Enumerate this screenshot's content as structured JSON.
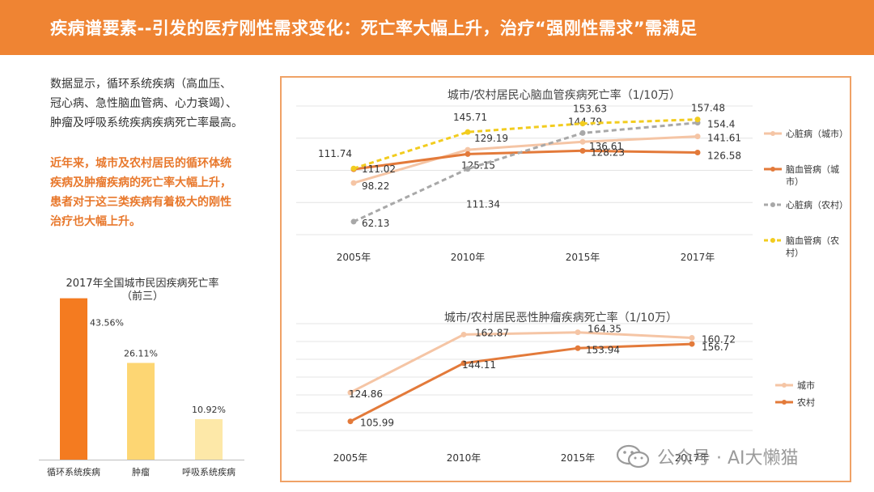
{
  "header": {
    "title": "疾病谱要素--引发的医疗刚性需求变化：死亡率大幅上升，治疗“强刚性需求”需满足"
  },
  "intro": {
    "lines": [
      "数据显示，循环系统疾病（高血压、",
      "冠心病、急性脑血管病、心力衰竭）、",
      "肿瘤及呼吸系统疾病疾病死亡率最高。"
    ]
  },
  "highlight": {
    "lines": [
      "近年来，城市及农村居民的循环体统",
      "疾病及肿瘤疾病的死亡率大幅上升，",
      "患者对于这三类疾病有着极大的刚性",
      "治疗也大幅上升。"
    ]
  },
  "watermark": {
    "text": "公众号 · AI大懒猫"
  },
  "chart_data": [
    {
      "id": "top3",
      "type": "bar",
      "title": "2017年全国城市民因疾病死亡率",
      "subtitle": "（前三）",
      "categories": [
        "循环系统疾病",
        "肿瘤",
        "呼吸系统疾病"
      ],
      "values": [
        43.56,
        26.11,
        10.92
      ],
      "value_labels": [
        "43.56%",
        "26.11%",
        "10.92%"
      ],
      "colors": [
        "#f47b20",
        "#fdd673",
        "#fde8a8"
      ],
      "ylim": [
        0,
        45
      ],
      "grid": false
    },
    {
      "id": "cardio",
      "type": "line",
      "title": "城市/农村居民心脑血管疾病死亡率（1/10万）",
      "categories": [
        "2005年",
        "2010年",
        "2015年",
        "2017年"
      ],
      "ylim": [
        50,
        170
      ],
      "grid": true,
      "legend_position": "right",
      "series": [
        {
          "name": "心脏病（城市）",
          "values": [
            98.22,
            129.19,
            136.61,
            141.61
          ],
          "color": "#f5c5a5",
          "dash": false,
          "labels": [
            "98.22",
            "129.19",
            "136.61",
            "141.61"
          ]
        },
        {
          "name": "脑血管病（城市）",
          "values": [
            111.02,
            125.15,
            128.23,
            126.58
          ],
          "color": "#e37a3a",
          "dash": false,
          "labels": [
            "111.02",
            "125.15",
            "128.23",
            "126.58"
          ]
        },
        {
          "name": "心脏病（农村）",
          "values": [
            62.13,
            111.34,
            144.79,
            154.4
          ],
          "color": "#a8a8a8",
          "dash": true,
          "labels": [
            "62.13",
            "111.34",
            "144.79",
            "154.4"
          ]
        },
        {
          "name": "脑血管病（农村）",
          "values": [
            111.74,
            145.71,
            153.63,
            157.48
          ],
          "color": "#f2cc1f",
          "dash": true,
          "labels": [
            "111.74",
            "145.71",
            "153.63",
            "157.48"
          ]
        }
      ]
    },
    {
      "id": "tumor",
      "type": "line",
      "title": "城市/农村居民恶性肿瘤疾病死亡率（1/10万）",
      "categories": [
        "2005年",
        "2010年",
        "2015年",
        "2017年"
      ],
      "ylim": [
        100,
        170
      ],
      "grid": true,
      "legend_position": "right",
      "series": [
        {
          "name": "城市",
          "values": [
            124.86,
            162.87,
            164.35,
            160.72
          ],
          "color": "#f5c5a5",
          "dash": false,
          "labels": [
            "124.86",
            "162.87",
            "164.35",
            "160.72"
          ]
        },
        {
          "name": "农村",
          "values": [
            105.99,
            144.11,
            153.94,
            156.7
          ],
          "color": "#e37a3a",
          "dash": false,
          "labels": [
            "105.99",
            "144.11",
            "153.94",
            "156.7"
          ]
        }
      ]
    }
  ]
}
